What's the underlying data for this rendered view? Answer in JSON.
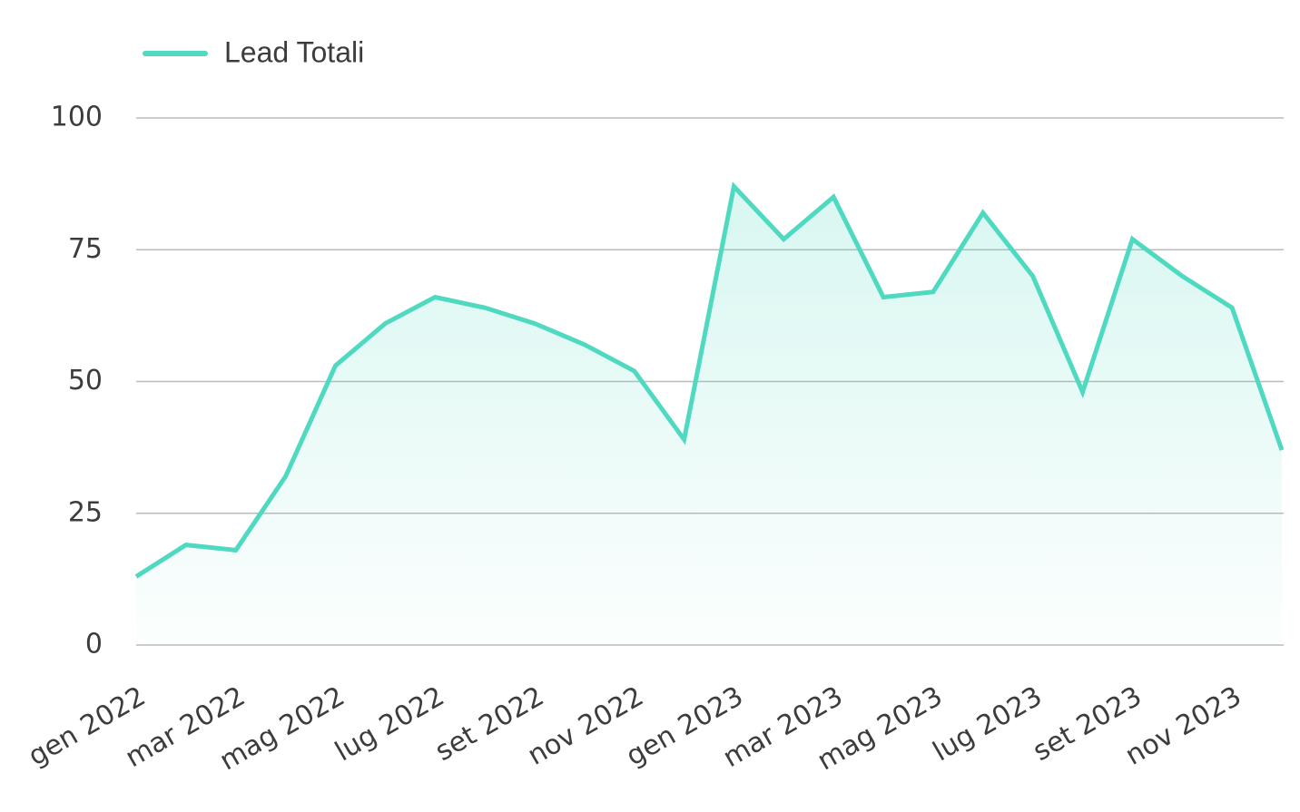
{
  "chart_data": {
    "type": "line",
    "categories": [
      "gen 2022",
      null,
      "mar 2022",
      null,
      "mag 2022",
      null,
      "lug 2022",
      null,
      "set 2022",
      null,
      "nov 2022",
      null,
      "gen 2023",
      null,
      "mar 2023",
      null,
      "mag 2023",
      null,
      "lug 2023",
      null,
      "set 2023",
      null,
      "nov 2023",
      null
    ],
    "series": [
      {
        "name": "Lead Totali",
        "color": "#4fd9c0",
        "values": [
          13,
          19,
          18,
          32,
          53,
          61,
          66,
          64,
          61,
          57,
          52,
          39,
          87,
          77,
          85,
          66,
          67,
          82,
          70,
          48,
          77,
          70,
          64,
          37
        ]
      }
    ],
    "ylim": [
      0,
      100
    ],
    "yticks": [
      0,
      25,
      50,
      75,
      100
    ],
    "grid": true,
    "area": true,
    "legend": "top-left"
  }
}
